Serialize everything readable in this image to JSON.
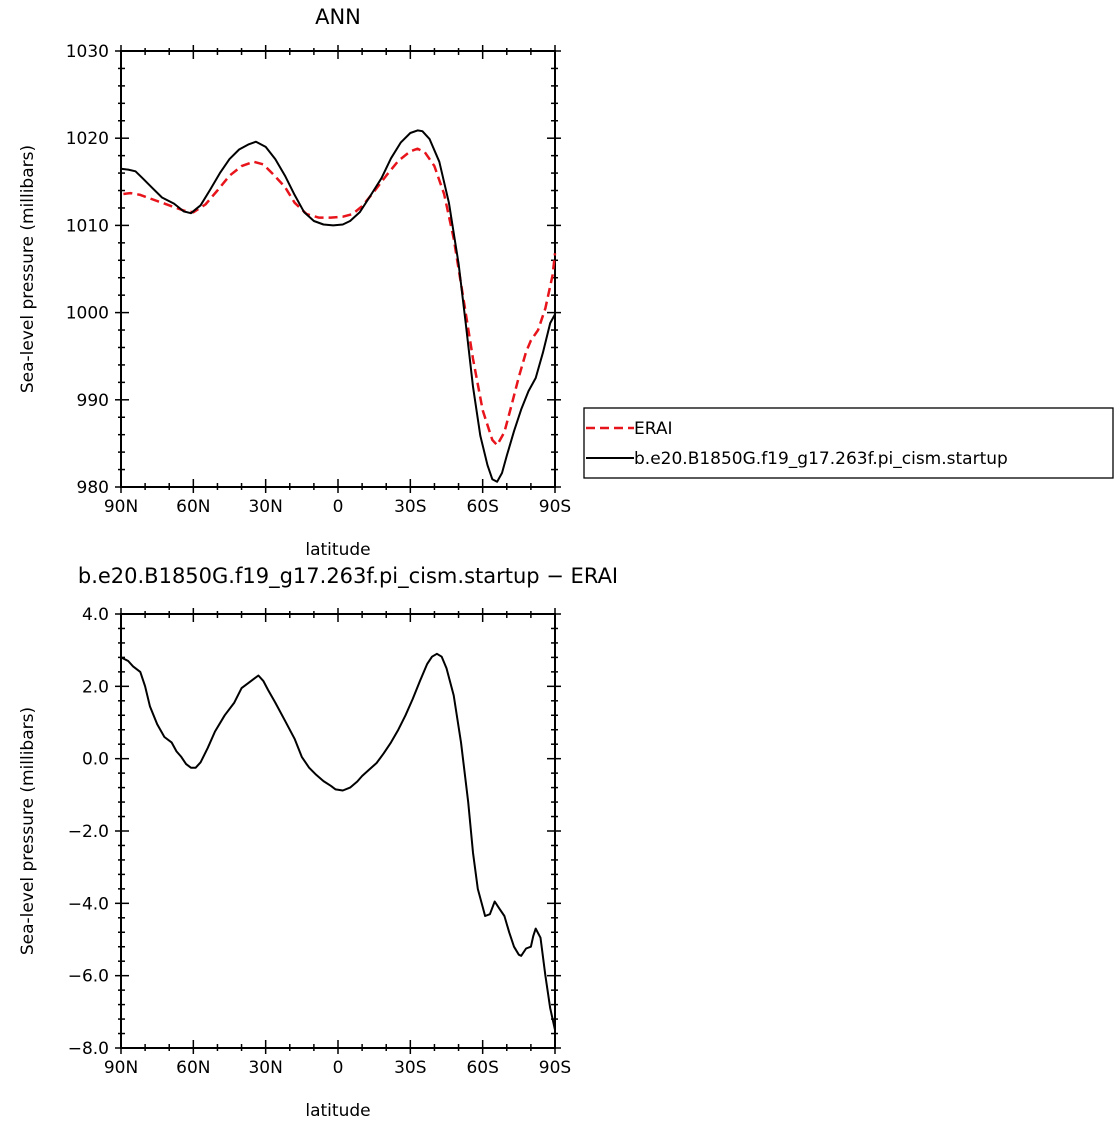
{
  "chart_data": [
    {
      "type": "line",
      "title": "ANN",
      "xlabel": "latitude",
      "ylabel": "Sea-level pressure (millibars)",
      "xlim": [
        90,
        -90
      ],
      "ylim": [
        980,
        1030
      ],
      "x_ticks": [
        90,
        60,
        30,
        0,
        -30,
        -60,
        -90
      ],
      "x_tick_labels": [
        "90N",
        "60N",
        "30N",
        "0",
        "30S",
        "60S",
        "90S"
      ],
      "y_ticks": [
        980,
        990,
        1000,
        1010,
        1020,
        1030
      ],
      "y_tick_labels": [
        "980",
        "990",
        "1000",
        "1010",
        "1020",
        "1030"
      ],
      "legend_position": "right",
      "series": [
        {
          "name": "ERAI",
          "color": "#e8141b",
          "dash": "dashed",
          "points": [
            [
              89,
              1013.6
            ],
            [
              86,
              1013.7
            ],
            [
              82,
              1013.5
            ],
            [
              78,
              1013.1
            ],
            [
              73,
              1012.6
            ],
            [
              68,
              1012.1
            ],
            [
              64,
              1011.7
            ],
            [
              60,
              1011.5
            ],
            [
              55,
              1012.4
            ],
            [
              50,
              1014.0
            ],
            [
              45,
              1015.7
            ],
            [
              40,
              1016.8
            ],
            [
              35,
              1017.3
            ],
            [
              31,
              1017.0
            ],
            [
              27,
              1015.9
            ],
            [
              22,
              1014.4
            ],
            [
              18,
              1012.6
            ],
            [
              13,
              1011.3
            ],
            [
              8,
              1010.9
            ],
            [
              3,
              1010.9
            ],
            [
              -2,
              1011.0
            ],
            [
              -6,
              1011.3
            ],
            [
              -10,
              1012.2
            ],
            [
              -15,
              1013.9
            ],
            [
              -20,
              1015.7
            ],
            [
              -25,
              1017.4
            ],
            [
              -30,
              1018.5
            ],
            [
              -33,
              1018.8
            ],
            [
              -36,
              1018.4
            ],
            [
              -40,
              1016.8
            ],
            [
              -44,
              1013.6
            ],
            [
              -48,
              1008.5
            ],
            [
              -52,
              1001.6
            ],
            [
              -56,
              994.7
            ],
            [
              -60,
              988.8
            ],
            [
              -64,
              985.4
            ],
            [
              -66,
              984.8
            ],
            [
              -69,
              986.3
            ],
            [
              -72,
              989.4
            ],
            [
              -75,
              992.6
            ],
            [
              -78,
              995.5
            ],
            [
              -80,
              996.8
            ],
            [
              -83,
              998.0
            ],
            [
              -86,
              1000.5
            ],
            [
              -89,
              1004.3
            ],
            [
              -90,
              1006.8
            ]
          ]
        },
        {
          "name": "b.e20.B1850G.f19_g17.263f.pi_cism.startup",
          "color": "#000000",
          "dash": "solid",
          "points": [
            [
              90,
              1016.5
            ],
            [
              87,
              1016.4
            ],
            [
              84,
              1016.2
            ],
            [
              81,
              1015.4
            ],
            [
              77,
              1014.3
            ],
            [
              73,
              1013.2
            ],
            [
              68,
              1012.5
            ],
            [
              64,
              1011.6
            ],
            [
              61,
              1011.4
            ],
            [
              57,
              1012.3
            ],
            [
              53,
              1014.1
            ],
            [
              49,
              1016.0
            ],
            [
              45,
              1017.6
            ],
            [
              41,
              1018.7
            ],
            [
              37,
              1019.3
            ],
            [
              34,
              1019.6
            ],
            [
              30,
              1019.0
            ],
            [
              26,
              1017.6
            ],
            [
              22,
              1015.7
            ],
            [
              18,
              1013.5
            ],
            [
              14,
              1011.5
            ],
            [
              10,
              1010.5
            ],
            [
              6,
              1010.1
            ],
            [
              2,
              1010.0
            ],
            [
              -2,
              1010.1
            ],
            [
              -5,
              1010.5
            ],
            [
              -9,
              1011.5
            ],
            [
              -13,
              1013.2
            ],
            [
              -18,
              1015.4
            ],
            [
              -22,
              1017.7
            ],
            [
              -26,
              1019.5
            ],
            [
              -30,
              1020.6
            ],
            [
              -33,
              1020.9
            ],
            [
              -35,
              1020.8
            ],
            [
              -38,
              1019.9
            ],
            [
              -42,
              1017.3
            ],
            [
              -46,
              1012.6
            ],
            [
              -50,
              1005.6
            ],
            [
              -53,
              998.7
            ],
            [
              -56,
              991.5
            ],
            [
              -59,
              985.9
            ],
            [
              -62,
              982.5
            ],
            [
              -64,
              980.9
            ],
            [
              -66,
              980.6
            ],
            [
              -68,
              981.6
            ],
            [
              -70,
              983.6
            ],
            [
              -73,
              986.4
            ],
            [
              -76,
              988.9
            ],
            [
              -79,
              991.0
            ],
            [
              -82,
              992.5
            ],
            [
              -85,
              995.4
            ],
            [
              -88,
              998.8
            ],
            [
              -90,
              999.8
            ]
          ]
        }
      ]
    },
    {
      "type": "line",
      "title": "b.e20.B1850G.f19_g17.263f.pi_cism.startup − ERAI",
      "xlabel": "latitude",
      "ylabel": "Sea-level pressure (millibars)",
      "xlim": [
        90,
        -90
      ],
      "ylim": [
        -8,
        4
      ],
      "x_ticks": [
        90,
        60,
        30,
        0,
        -30,
        -60,
        -90
      ],
      "x_tick_labels": [
        "90N",
        "60N",
        "30N",
        "0",
        "30S",
        "60S",
        "90S"
      ],
      "y_ticks": [
        -8,
        -6,
        -4,
        -2,
        0,
        2,
        4
      ],
      "y_tick_labels": [
        "−8.0",
        "−6.0",
        "−4.0",
        "−2.0",
        "0.0",
        "2.0",
        "4.0"
      ],
      "series": [
        {
          "name": "",
          "color": "#000000",
          "dash": "solid",
          "points": [
            [
              90,
              2.8
            ],
            [
              87,
              2.7
            ],
            [
              85,
              2.55
            ],
            [
              82,
              2.4
            ],
            [
              80,
              2.0
            ],
            [
              78,
              1.45
            ],
            [
              75,
              0.95
            ],
            [
              72,
              0.6
            ],
            [
              69,
              0.45
            ],
            [
              67,
              0.2
            ],
            [
              65,
              0.05
            ],
            [
              63,
              -0.15
            ],
            [
              61,
              -0.25
            ],
            [
              59,
              -0.25
            ],
            [
              57,
              -0.1
            ],
            [
              54,
              0.3
            ],
            [
              51,
              0.75
            ],
            [
              47,
              1.2
            ],
            [
              43,
              1.55
            ],
            [
              40,
              1.95
            ],
            [
              37,
              2.1
            ],
            [
              35,
              2.2
            ],
            [
              33,
              2.3
            ],
            [
              31,
              2.15
            ],
            [
              29,
              1.9
            ],
            [
              26,
              1.55
            ],
            [
              22,
              1.05
            ],
            [
              18,
              0.55
            ],
            [
              15,
              0.05
            ],
            [
              12,
              -0.25
            ],
            [
              9,
              -0.45
            ],
            [
              6,
              -0.62
            ],
            [
              3,
              -0.75
            ],
            [
              1,
              -0.85
            ],
            [
              -2,
              -0.88
            ],
            [
              -5,
              -0.8
            ],
            [
              -8,
              -0.63
            ],
            [
              -10,
              -0.48
            ],
            [
              -13,
              -0.3
            ],
            [
              -16,
              -0.12
            ],
            [
              -19,
              0.15
            ],
            [
              -22,
              0.45
            ],
            [
              -25,
              0.8
            ],
            [
              -28,
              1.2
            ],
            [
              -31,
              1.65
            ],
            [
              -34,
              2.15
            ],
            [
              -37,
              2.62
            ],
            [
              -39,
              2.82
            ],
            [
              -41,
              2.9
            ],
            [
              -43,
              2.82
            ],
            [
              -45,
              2.5
            ],
            [
              -48,
              1.75
            ],
            [
              -51,
              0.45
            ],
            [
              -54,
              -1.2
            ],
            [
              -56,
              -2.6
            ],
            [
              -58,
              -3.6
            ],
            [
              -60,
              -4.1
            ],
            [
              -61,
              -4.35
            ],
            [
              -63,
              -4.3
            ],
            [
              -65,
              -3.95
            ],
            [
              -67,
              -4.15
            ],
            [
              -69,
              -4.35
            ],
            [
              -71,
              -4.8
            ],
            [
              -73,
              -5.2
            ],
            [
              -75,
              -5.42
            ],
            [
              -76,
              -5.45
            ],
            [
              -78,
              -5.25
            ],
            [
              -80,
              -5.2
            ],
            [
              -81,
              -4.9
            ],
            [
              -82,
              -4.7
            ],
            [
              -84,
              -4.95
            ],
            [
              -86,
              -6.0
            ],
            [
              -88,
              -6.9
            ],
            [
              -90,
              -7.5
            ]
          ]
        }
      ]
    }
  ]
}
